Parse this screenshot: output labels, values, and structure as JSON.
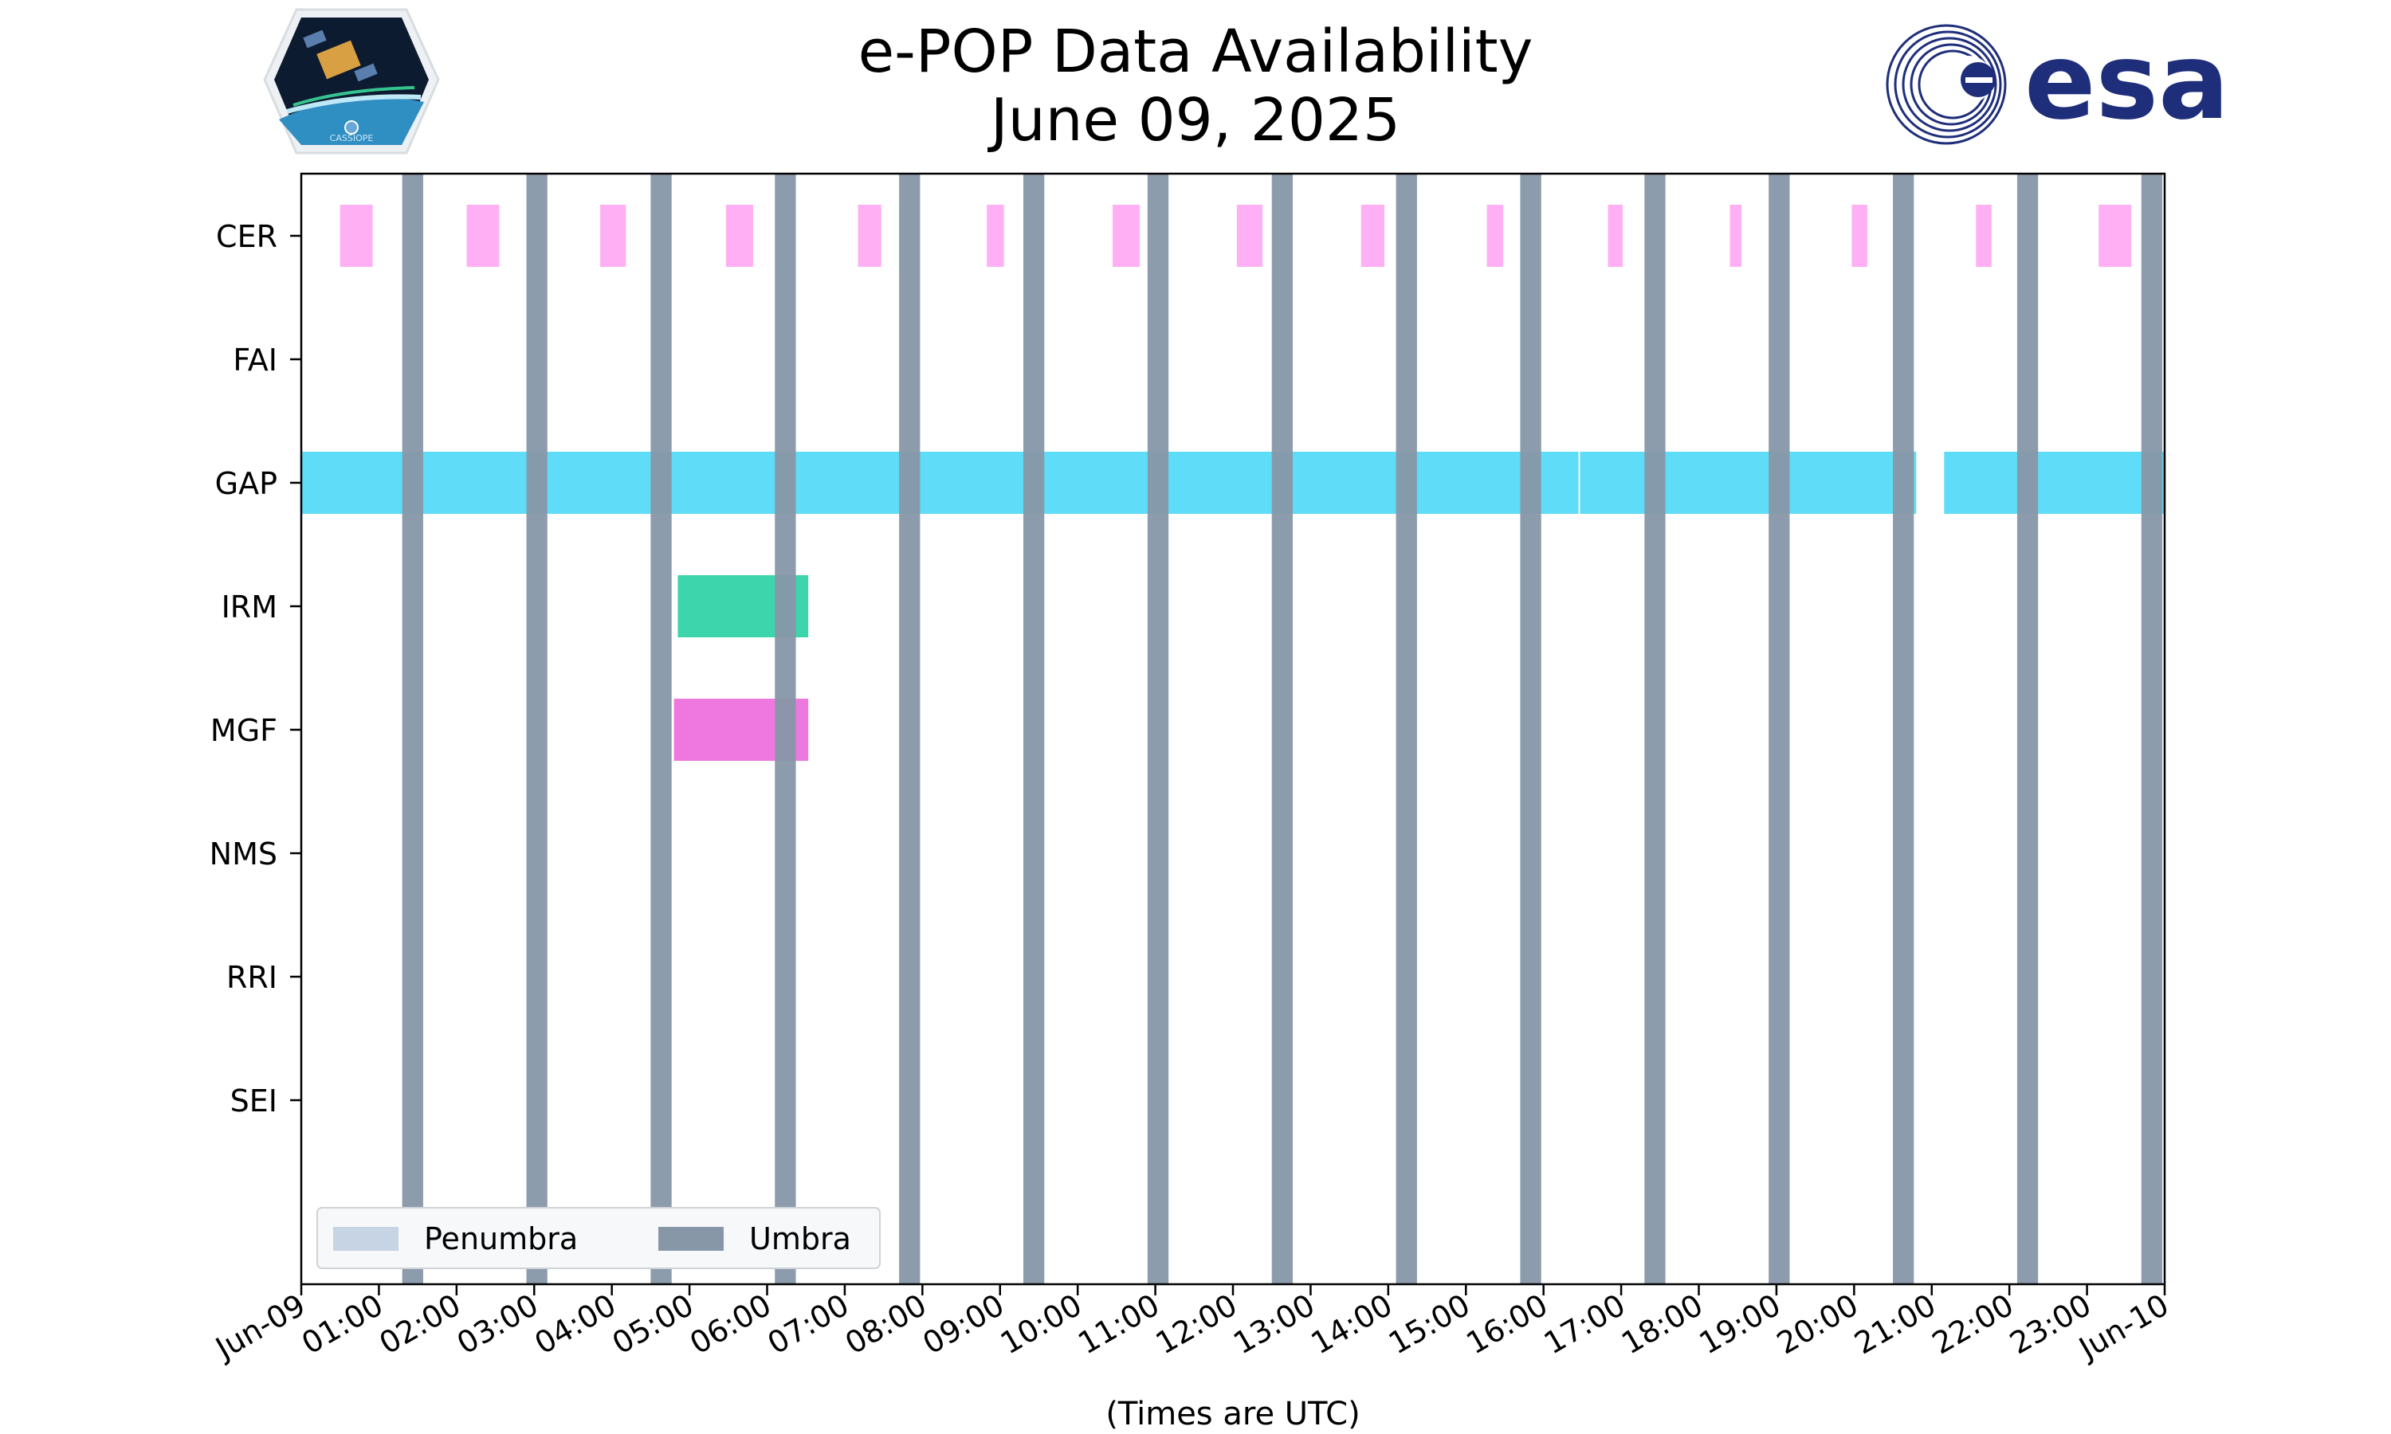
{
  "chart_data": {
    "type": "timeline",
    "title": "e-POP Data Availability",
    "subtitle": "June 09, 2025",
    "xlabel": "(Times are UTC)",
    "ylabel": "",
    "xlim_hours": [
      0,
      24
    ],
    "x_tick_labels": [
      "Jun-09",
      "01:00",
      "02:00",
      "03:00",
      "04:00",
      "05:00",
      "06:00",
      "07:00",
      "08:00",
      "09:00",
      "10:00",
      "11:00",
      "12:00",
      "13:00",
      "14:00",
      "15:00",
      "16:00",
      "17:00",
      "18:00",
      "19:00",
      "20:00",
      "21:00",
      "22:00",
      "23:00",
      "Jun-10"
    ],
    "instruments": [
      "CER",
      "FAI",
      "GAP",
      "IRM",
      "MGF",
      "NMS",
      "RRI",
      "SEI"
    ],
    "colors": {
      "CER": "#ffb0f4",
      "GAP": "#5fdcf7",
      "IRM": "#3dd5ac",
      "MGF": "#ef78e0",
      "umbra": "#8797a8",
      "penumbra": "#c7d4e4"
    },
    "data_intervals": {
      "CER": [
        [
          0.5,
          0.92
        ],
        [
          2.13,
          2.55
        ],
        [
          3.85,
          4.18
        ],
        [
          5.47,
          5.82
        ],
        [
          7.17,
          7.47
        ],
        [
          8.83,
          9.05
        ],
        [
          10.45,
          10.8
        ],
        [
          12.05,
          12.38
        ],
        [
          13.65,
          13.95
        ],
        [
          15.27,
          15.48
        ],
        [
          16.83,
          17.02
        ],
        [
          18.4,
          18.55
        ],
        [
          19.97,
          20.17
        ],
        [
          21.57,
          21.77
        ],
        [
          23.15,
          23.57
        ]
      ],
      "FAI": [],
      "GAP": [
        [
          0.0,
          16.45
        ],
        [
          16.47,
          20.8
        ],
        [
          21.16,
          24.0
        ]
      ],
      "IRM": [
        [
          4.85,
          6.53
        ]
      ],
      "MGF": [
        [
          4.8,
          6.53
        ]
      ],
      "NMS": [],
      "RRI": [],
      "SEI": []
    },
    "umbra_intervals": [
      [
        1.3,
        1.57
      ],
      [
        2.9,
        3.17
      ],
      [
        4.5,
        4.77
      ],
      [
        6.1,
        6.37
      ],
      [
        7.7,
        7.97
      ],
      [
        9.3,
        9.57
      ],
      [
        10.9,
        11.17
      ],
      [
        12.5,
        12.77
      ],
      [
        14.1,
        14.37
      ],
      [
        15.7,
        15.97
      ],
      [
        17.3,
        17.57
      ],
      [
        18.9,
        19.17
      ],
      [
        20.5,
        20.77
      ],
      [
        22.1,
        22.37
      ],
      [
        23.7,
        23.97
      ]
    ],
    "legend": {
      "placement": "lower-left",
      "entries": [
        "Penumbra",
        "Umbra"
      ]
    },
    "grid": false
  },
  "logos": {
    "left": "cassiope-mission-logo",
    "left_text": "CASSIOPE",
    "right": "esa-logo",
    "right_text": "esa"
  }
}
